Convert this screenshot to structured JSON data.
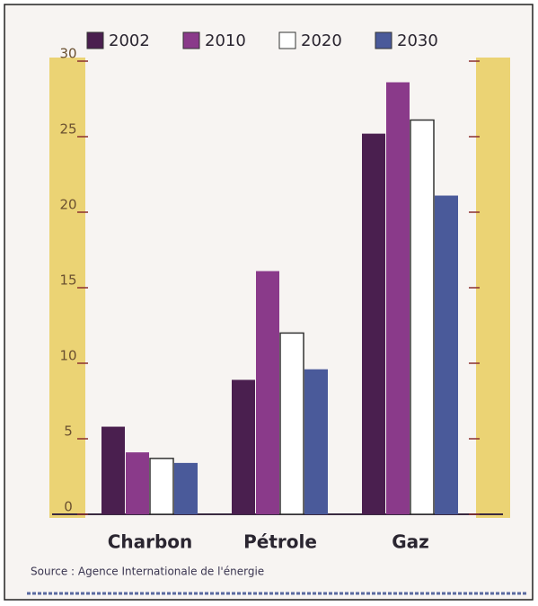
{
  "chart_data": {
    "type": "bar",
    "categories": [
      "Charbon",
      "Pétrole",
      "Gaz"
    ],
    "series": [
      {
        "name": "2002",
        "color": "#4a1f4f",
        "values": [
          5.8,
          8.9,
          25.2
        ]
      },
      {
        "name": "2010",
        "color": "#8a3a8a",
        "values": [
          4.1,
          16.1,
          28.6
        ]
      },
      {
        "name": "2020",
        "color": "#ffffff",
        "values": [
          3.7,
          12.0,
          26.1
        ]
      },
      {
        "name": "2030",
        "color": "#4a5a9a",
        "values": [
          3.4,
          9.6,
          21.1
        ]
      }
    ],
    "ylim": [
      0,
      30
    ],
    "yticks": [
      0,
      5,
      10,
      15,
      20,
      25,
      30
    ],
    "source": "Source : Agence Internationale de l'énergie"
  }
}
